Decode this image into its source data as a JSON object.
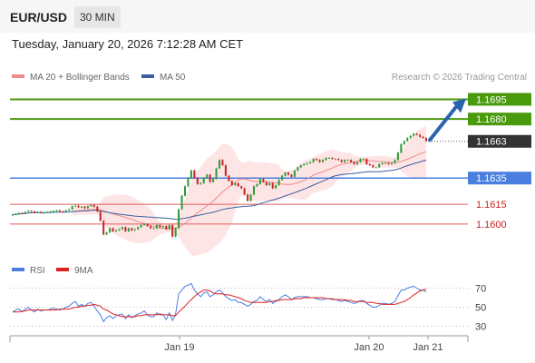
{
  "header": {
    "symbol": "EUR/USD",
    "interval": "30 MIN",
    "datetime": "Tuesday, January 20, 2026 7:12:28 AM CET"
  },
  "legend": {
    "ma20_label": "MA 20 + Bollinger Bands",
    "ma50_label": "MA 50",
    "credit": "Research © 2026 Trading Central",
    "rsi_label": "RSI",
    "ma9_label": "9MA"
  },
  "colors": {
    "resistance": "#4a9a0d",
    "support": "#4a7fe0",
    "minor_support": "#e55a5a",
    "current": "#333333",
    "bollinger_fill": "#fde0e0",
    "ma20": "#f08a8a",
    "ma50": "#3b5fa0",
    "arrow": "#2a63b0",
    "rsi": "#4a7fe0",
    "rsi_ma": "#e02020",
    "bull": "#2f9c3a",
    "bear": "#c62828"
  },
  "chart_data": {
    "type": "candlestick",
    "ylim": [
      1.1575,
      1.1705
    ],
    "x_ticks": [
      "Jan 19",
      "Jan 20",
      "Jan 21"
    ],
    "levels": [
      {
        "value": 1.1695,
        "label": "1.1695",
        "kind": "resistance"
      },
      {
        "value": 1.168,
        "label": "1.1680",
        "kind": "resistance"
      },
      {
        "value": 1.1663,
        "label": "1.1663",
        "kind": "current"
      },
      {
        "value": 1.1635,
        "label": "1.1635",
        "kind": "support"
      },
      {
        "value": 1.1615,
        "label": "1.1615",
        "kind": "minor_support"
      },
      {
        "value": 1.16,
        "label": "1.1600",
        "kind": "minor_support"
      }
    ],
    "close": [
      1.16072,
      1.16076,
      1.16084,
      1.1608,
      1.16092,
      1.161,
      1.16096,
      1.16088,
      1.16092,
      1.16084,
      1.16088,
      1.16092,
      1.16096,
      1.161,
      1.16104,
      1.16096,
      1.16092,
      1.16104,
      1.16112,
      1.16136,
      1.1614,
      1.16128,
      1.16132,
      1.1612,
      1.16136,
      1.16144,
      1.16132,
      1.16096,
      1.16024,
      1.1592,
      1.15936,
      1.15968,
      1.15944,
      1.15952,
      1.1596,
      1.15976,
      1.15944,
      1.15968,
      1.15952,
      1.1596,
      1.15976,
      1.15992,
      1.16,
      1.15984,
      1.15968,
      1.15968,
      1.15992,
      1.15976,
      1.15984,
      1.1596,
      1.15992,
      1.15904,
      1.15968,
      1.16112,
      1.16216,
      1.16288,
      1.16352,
      1.16408,
      1.16352,
      1.16304,
      1.16312,
      1.16352,
      1.16376,
      1.1632,
      1.16344,
      1.16424,
      1.16488,
      1.16448,
      1.16368,
      1.16328,
      1.16296,
      1.16312,
      1.16288,
      1.16272,
      1.16224,
      1.16176,
      1.16224,
      1.16288,
      1.16304,
      1.16344,
      1.1632,
      1.16296,
      1.16312,
      1.16272,
      1.16296,
      1.16336,
      1.16368,
      1.16392,
      1.16376,
      1.1636,
      1.16408,
      1.16432,
      1.16448,
      1.16456,
      1.16464,
      1.16472,
      1.16496,
      1.16488,
      1.16472,
      1.16488,
      1.16504,
      1.16504,
      1.16496,
      1.16496,
      1.16488,
      1.16472,
      1.16488,
      1.16488,
      1.16472,
      1.16456,
      1.16472,
      1.16496,
      1.16496,
      1.16456,
      1.16448,
      1.16432,
      1.16432,
      1.16456,
      1.16464,
      1.16464,
      1.16456,
      1.16464,
      1.16488,
      1.16544,
      1.16608,
      1.16632,
      1.16656,
      1.16672,
      1.16688,
      1.1668,
      1.16664,
      1.16656,
      1.16632
    ],
    "rsi": {
      "ylim": [
        20,
        80
      ],
      "ticks": [
        70,
        50,
        30
      ],
      "values": [
        45,
        47,
        48,
        45,
        48,
        50,
        47,
        45,
        48,
        46,
        47,
        47,
        48,
        49,
        48,
        47,
        48,
        50,
        51,
        54,
        56,
        51,
        53,
        51,
        54,
        55,
        51,
        46,
        42,
        35,
        39,
        41,
        38,
        41,
        42,
        43,
        38,
        42,
        39,
        41,
        43,
        44,
        46,
        42,
        40,
        40,
        44,
        42,
        42,
        37,
        44,
        36,
        43,
        64,
        68,
        72,
        73,
        75,
        68,
        64,
        61,
        65,
        66,
        61,
        63,
        66,
        68,
        65,
        61,
        59,
        57,
        58,
        55,
        55,
        53,
        51,
        53,
        56,
        57,
        61,
        58,
        56,
        58,
        54,
        56,
        58,
        61,
        63,
        61,
        58,
        60,
        61,
        61,
        61,
        61,
        60,
        60,
        59,
        58,
        58,
        59,
        59,
        58,
        58,
        57,
        56,
        57,
        56,
        55,
        54,
        55,
        57,
        57,
        54,
        52,
        50,
        50,
        52,
        54,
        54,
        53,
        54,
        56,
        62,
        68,
        68,
        70,
        71,
        72,
        70,
        68,
        68,
        66
      ],
      "ma9": [
        45,
        45,
        45,
        46,
        46,
        47,
        47,
        47,
        47,
        47,
        47,
        47,
        47,
        47,
        47,
        48,
        48,
        48,
        48,
        49,
        50,
        50,
        51,
        51,
        52,
        52,
        53,
        52,
        51,
        48,
        47,
        45,
        43,
        42,
        41,
        40,
        40,
        40,
        40,
        40,
        41,
        41,
        42,
        42,
        42,
        42,
        42,
        43,
        42,
        42,
        42,
        41,
        41,
        45,
        48,
        51,
        55,
        58,
        61,
        64,
        66,
        68,
        68,
        67,
        65,
        64,
        64,
        64,
        63,
        63,
        62,
        61,
        60,
        59,
        57,
        56,
        55,
        55,
        55,
        55,
        55,
        55,
        56,
        56,
        57,
        57,
        58,
        58,
        58,
        58,
        59,
        59,
        59,
        60,
        60,
        60,
        60,
        60,
        60,
        60,
        59,
        59,
        59,
        58,
        58,
        58,
        58,
        57,
        57,
        56,
        56,
        56,
        56,
        55,
        55,
        55,
        54,
        54,
        53,
        53,
        53,
        53,
        53,
        54,
        55,
        56,
        58,
        60,
        63,
        65,
        67,
        68,
        69
      ]
    }
  }
}
